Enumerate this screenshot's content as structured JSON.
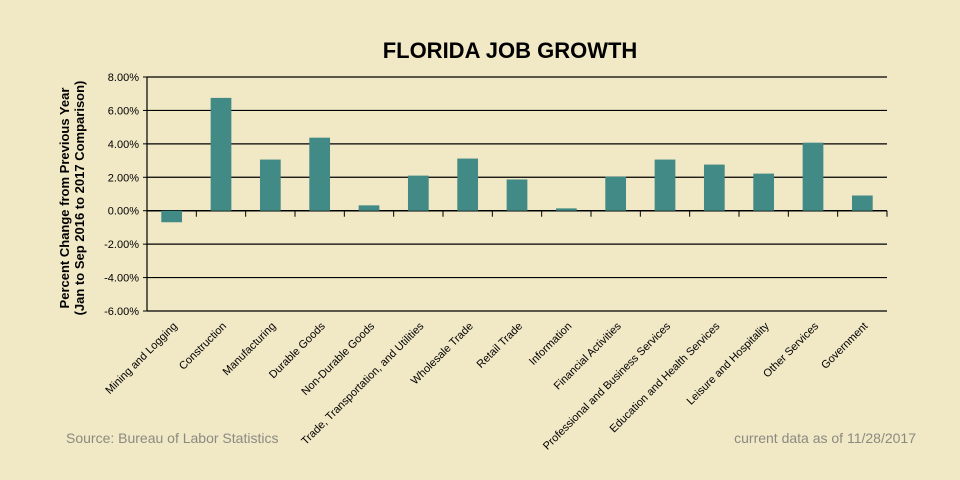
{
  "chart_data": {
    "type": "bar",
    "title": "FLORIDA JOB GROWTH",
    "ylabel": [
      "Percent Change from Previous Year",
      "(Jan to Sep 2016 to 2017 Comparison)"
    ],
    "xlabel": "",
    "categories": [
      "Mining and Logging",
      "Construction",
      "Manufacturing",
      "Durable Goods",
      "Non-Durable Goods",
      "Trade, Transportation, and Utilities",
      "Wholesale Trade",
      "Retail Trade",
      "Information",
      "Financial Activities",
      "Professional and Business Services",
      "Education and Health Services",
      "Leisure and Hospitality",
      "Other Services",
      "Government"
    ],
    "values": [
      -0.69,
      6.75,
      3.06,
      4.37,
      0.32,
      2.1,
      3.12,
      1.87,
      0.14,
      2.04,
      3.06,
      2.76,
      2.22,
      4.07,
      0.91
    ],
    "ylim": [
      -6,
      8
    ],
    "yticks": [
      "-6.00%",
      "-4.00%",
      "-2.00%",
      "0.00%",
      "2.00%",
      "4.00%",
      "6.00%",
      "8.00%"
    ],
    "grid": true,
    "legend": "none",
    "bar_color": "#418a85"
  },
  "footer": {
    "source": "Source: Bureau of Labor Statistics",
    "as_of": "current data as of 11/28/2017"
  }
}
